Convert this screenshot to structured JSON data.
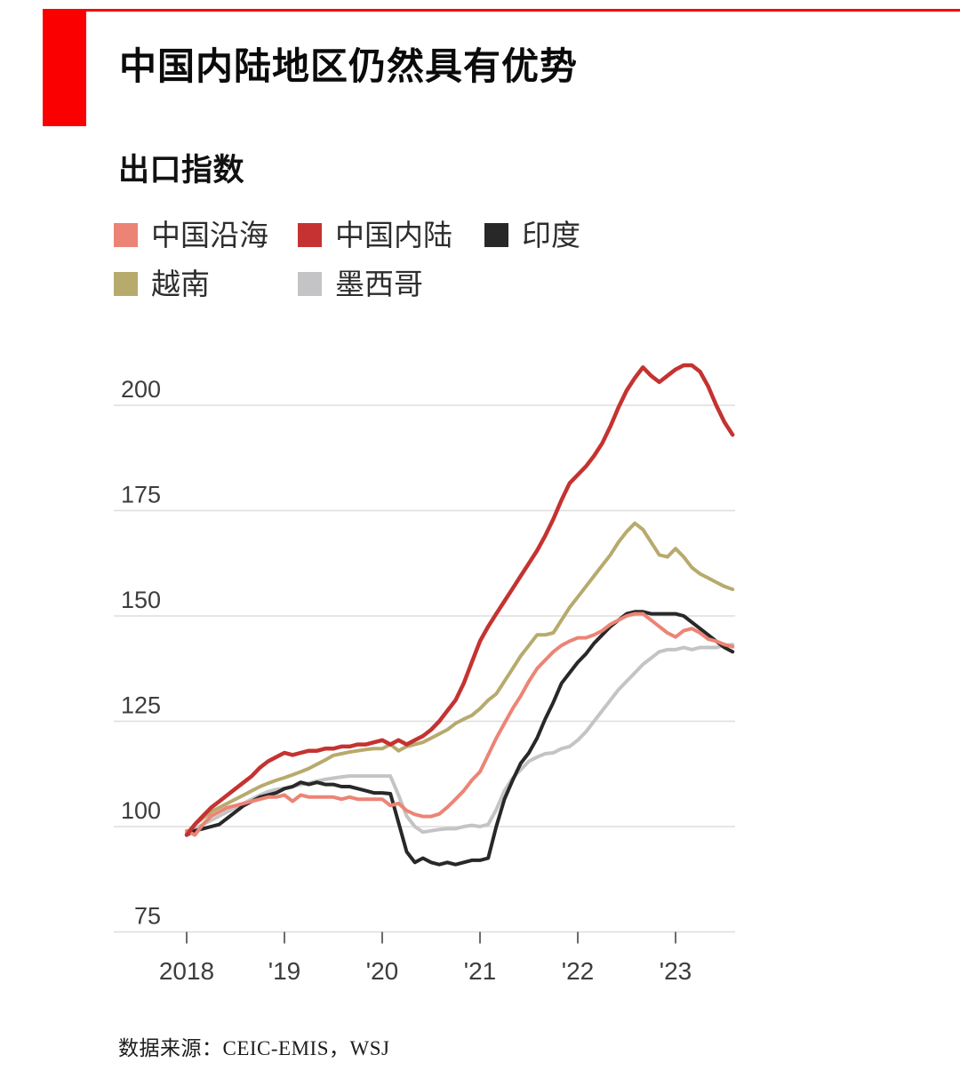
{
  "header": {
    "title": "中国内陆地区仍然具有优势"
  },
  "subtitle": "出口指数",
  "source": "数据来源：CEIC-EMIS，WSJ",
  "accent_colors": {
    "brand_red": "#fb0000",
    "gridline": "#dedede",
    "tick": "#6b6b6b",
    "axis_text": "#3d3d3d"
  },
  "legend": {
    "items": [
      {
        "label": "中国沿海",
        "color": "#ec8475"
      },
      {
        "label": "中国内陆",
        "color": "#c43331"
      },
      {
        "label": "印度",
        "color": "#282828"
      },
      {
        "label": "越南",
        "color": "#b7aa6d"
      },
      {
        "label": "墨西哥",
        "color": "#c4c4c6"
      }
    ]
  },
  "chart_data": {
    "type": "line",
    "title": "出口指数",
    "xlabel": "",
    "ylabel": "",
    "x_start": "2018-01",
    "x_frequency": "monthly",
    "x_tick_labels": [
      "2018",
      "'19",
      "'20",
      "'21",
      "'22",
      "'23"
    ],
    "x_tick_month_index": [
      0,
      12,
      24,
      36,
      48,
      60
    ],
    "y_ticks": [
      200,
      175,
      150,
      125,
      100,
      75
    ],
    "ylim": [
      75,
      215
    ],
    "grid": "horizontal",
    "legend_position": "top-left",
    "series": [
      {
        "id": "mexico",
        "name": "墨西哥",
        "color": "#c4c4c6",
        "values": [
          98.3,
          99.5,
          100.5,
          101.5,
          102.5,
          103.5,
          104.5,
          105.5,
          106.5,
          107.5,
          108.3,
          108.8,
          109.1,
          109.5,
          110,
          110.3,
          110.8,
          111.2,
          111.5,
          111.8,
          112,
          112,
          112,
          112,
          112,
          112,
          107.5,
          102.5,
          100,
          98.7,
          99,
          99.3,
          99.5,
          99.5,
          100,
          100.3,
          100,
          100.5,
          104,
          108.5,
          111.5,
          113.5,
          115.5,
          116.5,
          117.3,
          117.5,
          118.5,
          119,
          120.5,
          122.5,
          125,
          127.5,
          130,
          132.5,
          134.5,
          136.5,
          138.5,
          140,
          141.5,
          142,
          142,
          142.5,
          142,
          142.5,
          142.5,
          142.5,
          143,
          143.2
        ]
      },
      {
        "id": "vietnam",
        "name": "越南",
        "color": "#b7aa6d",
        "values": [
          98.5,
          100.5,
          102,
          103.5,
          104.5,
          105.5,
          106.5,
          107.5,
          108.5,
          109.5,
          110.3,
          111,
          111.6,
          112.3,
          113,
          113.8,
          114.8,
          115.8,
          116.9,
          117.3,
          117.7,
          118,
          118.3,
          118.5,
          118.5,
          119.5,
          118,
          119,
          119.5,
          120,
          121,
          122,
          123,
          124.5,
          125.5,
          126.4,
          128,
          130,
          131.5,
          134.5,
          137.5,
          140.5,
          143,
          145.5,
          145.5,
          146,
          149,
          152,
          154.5,
          157,
          159.5,
          162,
          164.5,
          167.5,
          170,
          172,
          170.5,
          167.5,
          164.5,
          164,
          166,
          164,
          161.5,
          160,
          159,
          158,
          157,
          156.3
        ]
      },
      {
        "id": "india",
        "name": "印度",
        "color": "#282828",
        "values": [
          98,
          99,
          99.5,
          100,
          100.5,
          102,
          103.5,
          105,
          106,
          107,
          107.5,
          108,
          109,
          109.5,
          110.5,
          110,
          110.5,
          110,
          110,
          109.5,
          109.5,
          109,
          108.5,
          108,
          108,
          107.8,
          101,
          94,
          91.5,
          92.5,
          91.5,
          91,
          91.5,
          91,
          91.5,
          92,
          92,
          92.5,
          100,
          106.5,
          111,
          115,
          117.5,
          121,
          125.5,
          129.5,
          134,
          136.5,
          139,
          141,
          143.5,
          145.5,
          147.5,
          149,
          150.5,
          151,
          151,
          150.5,
          150.5,
          150.5,
          150.5,
          150,
          148.5,
          147,
          145.5,
          144,
          142.5,
          141.5
        ]
      },
      {
        "id": "china-coastal",
        "name": "中国沿海",
        "color": "#ec8475",
        "values": [
          99,
          98,
          100.5,
          102.5,
          103.5,
          104.5,
          105,
          105.5,
          106,
          106.5,
          107,
          107,
          107.5,
          106,
          107.5,
          107,
          107,
          107,
          107,
          106.5,
          107,
          106.5,
          106.5,
          106.5,
          106.5,
          105,
          105.5,
          103.8,
          102.9,
          102.4,
          102.4,
          103,
          104.6,
          106.5,
          108.5,
          111,
          113,
          117,
          121,
          124.5,
          128,
          131,
          134.5,
          137.5,
          139.5,
          141.5,
          143,
          144,
          144.8,
          144.8,
          145.5,
          146.5,
          148,
          149,
          150,
          150.5,
          150.5,
          149,
          147.5,
          146,
          145,
          146.5,
          147,
          146,
          144.5,
          144,
          143.2,
          142.7
        ]
      },
      {
        "id": "china-inland",
        "name": "中国内陆",
        "color": "#c43331",
        "values": [
          98,
          100.5,
          102.5,
          104.5,
          106,
          107.5,
          109,
          110.5,
          112,
          114,
          115.5,
          116.5,
          117.5,
          117,
          117.5,
          118,
          118,
          118.5,
          118.5,
          119,
          119,
          119.5,
          119.5,
          120,
          120.5,
          119.5,
          120.5,
          119.5,
          120.5,
          121.5,
          123,
          125,
          127.5,
          130,
          134,
          139,
          144,
          147.5,
          150.5,
          153.5,
          156.5,
          159.5,
          162.5,
          165.5,
          169,
          173,
          177.5,
          181.5,
          183.5,
          185.5,
          188,
          191,
          195,
          199.5,
          203.5,
          206.5,
          209,
          207,
          205.5,
          207,
          208.5,
          209.5,
          209.5,
          208,
          204.5,
          200,
          196,
          193
        ]
      }
    ]
  }
}
